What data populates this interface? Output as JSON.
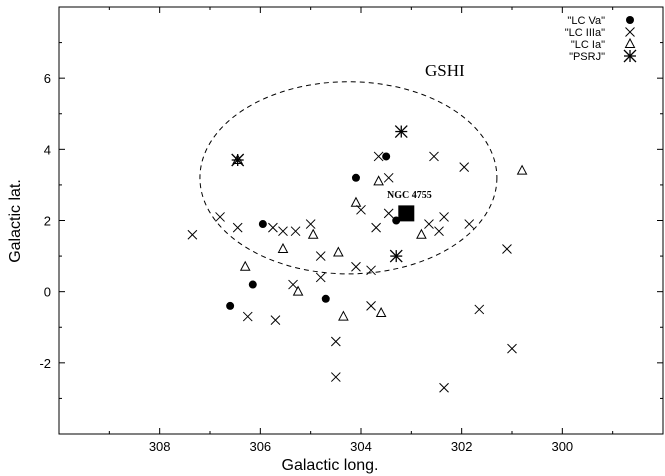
{
  "chart_data": {
    "type": "scatter",
    "title": "",
    "xlabel": "Galactic long.",
    "ylabel": "Galactic lat.",
    "xlim": [
      310,
      298
    ],
    "ylim": [
      -4,
      8
    ],
    "x_reversed": true,
    "x_ticks": [
      308,
      306,
      304,
      302,
      300
    ],
    "y_ticks": [
      -2,
      0,
      2,
      4,
      6
    ],
    "grid": false,
    "legend_position": "top-right",
    "series": [
      {
        "name": "\"LC Va\"",
        "marker": "filled-circle",
        "points": [
          [
            306.6,
            -0.4
          ],
          [
            306.15,
            0.2
          ],
          [
            305.95,
            1.9
          ],
          [
            304.7,
            -0.2
          ],
          [
            304.1,
            3.2
          ],
          [
            303.5,
            3.8
          ],
          [
            303.3,
            2.0
          ]
        ]
      },
      {
        "name": "\"LC IIIa\"",
        "marker": "x-cross",
        "points": [
          [
            307.35,
            1.6
          ],
          [
            306.8,
            2.1
          ],
          [
            306.45,
            1.8
          ],
          [
            306.25,
            -0.7
          ],
          [
            305.7,
            -0.8
          ],
          [
            305.75,
            1.8
          ],
          [
            305.55,
            1.7
          ],
          [
            305.3,
            1.7
          ],
          [
            305.35,
            0.2
          ],
          [
            305.0,
            1.9
          ],
          [
            304.8,
            1.0
          ],
          [
            304.8,
            0.4
          ],
          [
            304.5,
            -1.4
          ],
          [
            304.5,
            -2.4
          ],
          [
            304.1,
            0.7
          ],
          [
            304.0,
            2.3
          ],
          [
            303.8,
            0.6
          ],
          [
            303.8,
            -0.4
          ],
          [
            303.7,
            1.8
          ],
          [
            303.65,
            3.8
          ],
          [
            303.45,
            3.2
          ],
          [
            303.45,
            2.2
          ],
          [
            302.65,
            1.9
          ],
          [
            302.55,
            3.8
          ],
          [
            302.45,
            1.7
          ],
          [
            302.35,
            2.1
          ],
          [
            302.35,
            -2.7
          ],
          [
            301.95,
            3.5
          ],
          [
            301.85,
            1.9
          ],
          [
            301.65,
            -0.5
          ],
          [
            301.1,
            1.2
          ],
          [
            301.0,
            -1.6
          ]
        ]
      },
      {
        "name": "\"LC Ia\"",
        "marker": "open-triangle",
        "points": [
          [
            306.45,
            3.7
          ],
          [
            306.3,
            0.7
          ],
          [
            305.55,
            1.2
          ],
          [
            305.25,
            0.0
          ],
          [
            304.95,
            1.6
          ],
          [
            304.45,
            1.1
          ],
          [
            304.35,
            -0.7
          ],
          [
            304.1,
            2.5
          ],
          [
            303.65,
            3.1
          ],
          [
            303.6,
            -0.6
          ],
          [
            302.8,
            1.6
          ],
          [
            300.8,
            3.4
          ]
        ]
      },
      {
        "name": "\"PSRJ\"",
        "marker": "star",
        "points": [
          [
            306.45,
            3.7
          ],
          [
            303.2,
            4.5
          ],
          [
            303.3,
            1.0
          ]
        ]
      }
    ],
    "annotations": [
      {
        "text": "GSHI",
        "x": 303.0,
        "y": 6.2
      },
      {
        "text": "NGC 4755",
        "x": 302.85,
        "y": 2.65
      }
    ],
    "ellipse": {
      "label": "GSHI",
      "center_x": 304.25,
      "center_y": 3.2,
      "semi_axis_long": 2.95,
      "semi_axis_lat": 2.7,
      "style": "dashed"
    },
    "highlight": {
      "label": "NGC 4755",
      "x": 303.1,
      "y": 2.2,
      "marker": "filled-square"
    }
  }
}
